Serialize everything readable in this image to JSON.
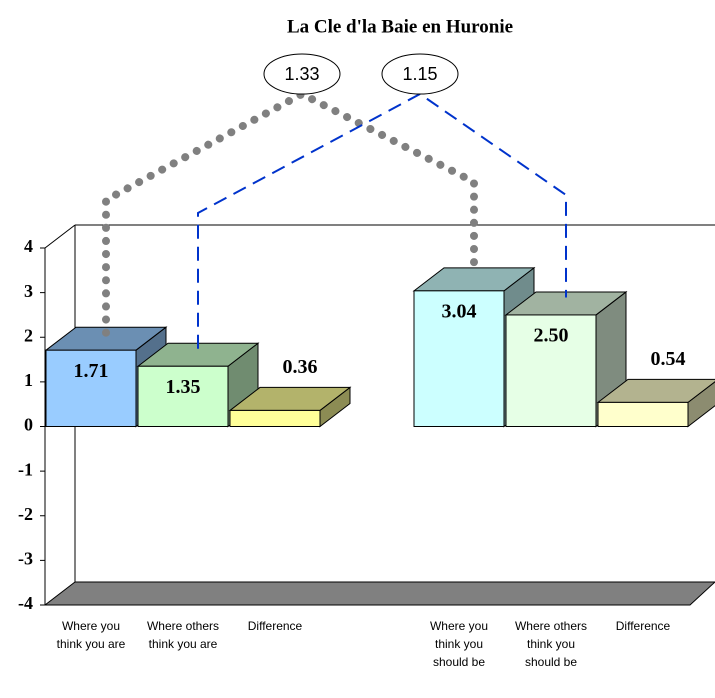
{
  "chart_data": {
    "type": "bar3d",
    "title": "La Cle d'la Baie en Huronie",
    "categories": [
      "Where you think you are",
      "Where others think you are",
      "Difference",
      null,
      "Where you think you should be",
      "Where others think you should be",
      "Difference"
    ],
    "values": [
      1.71,
      1.35,
      0.36,
      null,
      3.04,
      2.5,
      0.54
    ],
    "value_labels": [
      "1.71",
      "1.35",
      "0.36",
      null,
      "3.04",
      "2.50",
      "0.54"
    ],
    "colors": [
      "#99ccff",
      "#ccffcc",
      "#ffff99",
      null,
      "#ccffff",
      "#e6ffe6",
      "#ffffcc"
    ],
    "ylim": [
      -4,
      4
    ],
    "yticks": [
      -4,
      -3,
      -2,
      -1,
      0,
      1,
      2,
      3,
      4
    ],
    "connectors": [
      {
        "value": 1.33,
        "color": "#808080",
        "style": "dotted"
      },
      {
        "value": 1.15,
        "color": "#0033cc",
        "style": "dashed"
      }
    ]
  }
}
